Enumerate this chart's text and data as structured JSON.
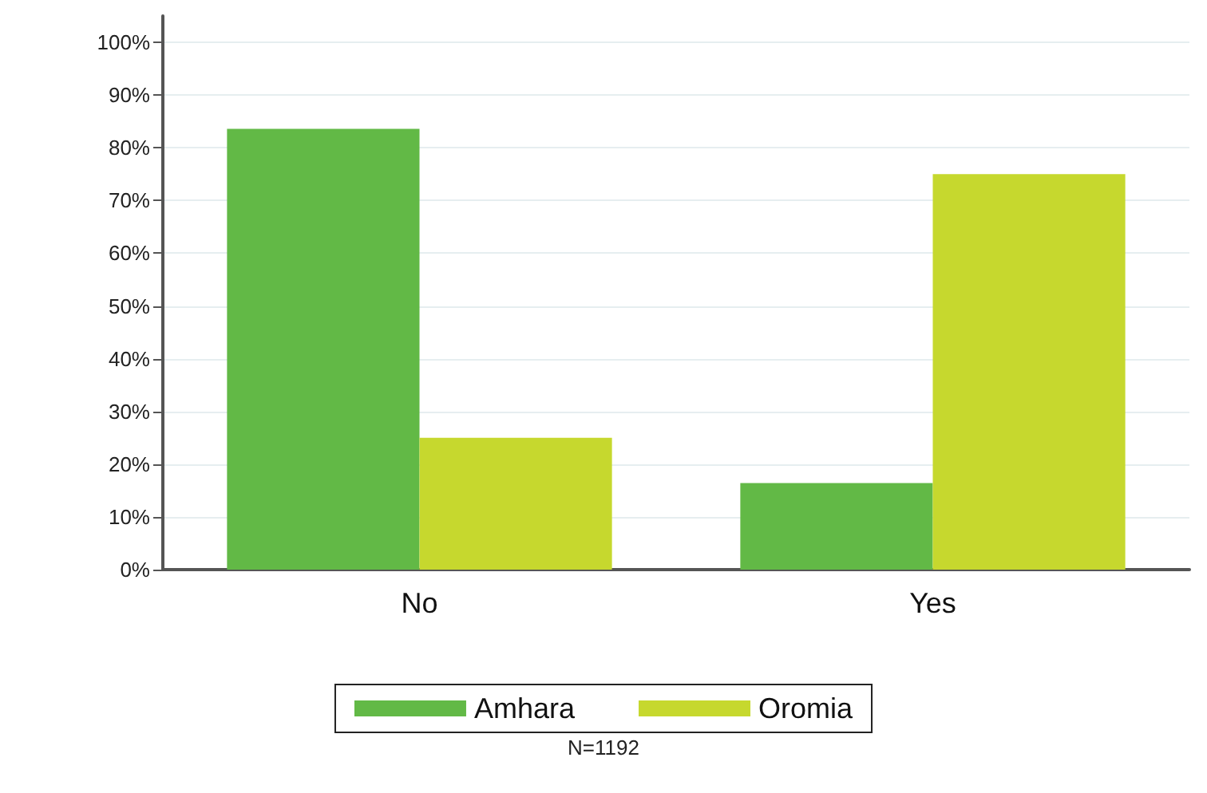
{
  "chart_data": {
    "type": "bar",
    "categories": [
      "No",
      "Yes"
    ],
    "series": [
      {
        "name": "Amhara",
        "color": "#62b946",
        "values": [
          83.6,
          16.4
        ]
      },
      {
        "name": "Oromia",
        "color": "#c6d82e",
        "values": [
          25,
          75
        ]
      }
    ],
    "ylim": [
      0,
      105
    ],
    "yticks": [
      {
        "value": 0,
        "label": "0%"
      },
      {
        "value": 10,
        "label": "10%"
      },
      {
        "value": 20,
        "label": "20%"
      },
      {
        "value": 30,
        "label": "30%"
      },
      {
        "value": 40,
        "label": "40%"
      },
      {
        "value": 50,
        "label": "50%"
      },
      {
        "value": 60,
        "label": "60%"
      },
      {
        "value": 70,
        "label": "70%"
      },
      {
        "value": 80,
        "label": "80%"
      },
      {
        "value": 90,
        "label": "90%"
      },
      {
        "value": 100,
        "label": "100%"
      }
    ],
    "grid": "y",
    "legend": "bottom",
    "annotations": [
      "N=1192"
    ]
  }
}
